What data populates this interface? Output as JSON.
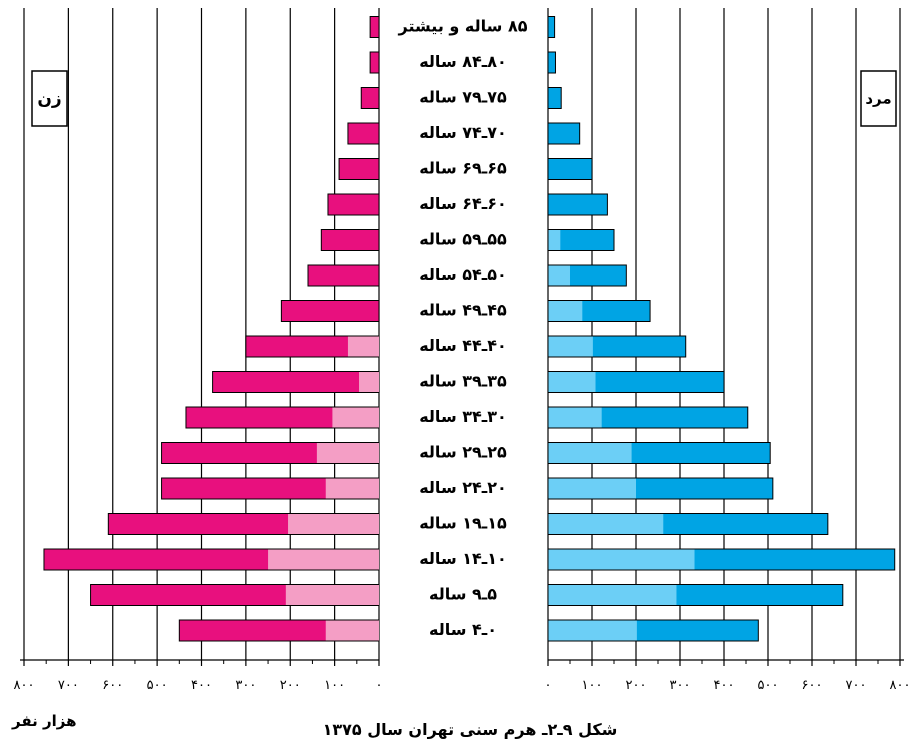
{
  "chart_data": {
    "type": "bar",
    "subtype": "population-pyramid",
    "title": "شکل ۹ـ۲ـ هرم سنی تهران سال ۱۳۷۵",
    "unit_label": "هزار نفر",
    "left_panel": {
      "label": "زن"
    },
    "right_panel": {
      "label": "مرد"
    },
    "xlim": [
      0,
      800
    ],
    "grid": true,
    "ticks": {
      "values": [
        0,
        100,
        200,
        300,
        400,
        500,
        600,
        700,
        800
      ],
      "labels": [
        "۰",
        "۱۰۰",
        "۲۰۰",
        "۳۰۰",
        "۴۰۰",
        "۵۰۰",
        "۶۰۰",
        "۷۰۰",
        "۸۰۰"
      ]
    },
    "categories": [
      "۸۵ ساله و بیشتر",
      "۸۰ـ۸۴ ساله",
      "۷۵ـ۷۹ ساله",
      "۷۰ـ۷۴ ساله",
      "۶۵ـ۶۹ ساله",
      "۶۰ـ۶۴ ساله",
      "۵۵ـ۵۹ ساله",
      "۵۰ـ۵۴ ساله",
      "۴۵ـ۴۹ ساله",
      "۴۰ـ۴۴ ساله",
      "۳۵ـ۳۹ ساله",
      "۳۰ـ۳۴ ساله",
      "۲۵ـ۲۹ ساله",
      "۲۰ـ۲۴ ساله",
      "۱۵ـ۱۹ ساله",
      "۱۰ـ۱۴ ساله",
      "۵ـ۹ ساله",
      "۰ـ۴ ساله"
    ],
    "series": [
      {
        "side": "female",
        "values": [
          20,
          20,
          40,
          70,
          90,
          115,
          130,
          160,
          220,
          300,
          375,
          435,
          490,
          490,
          610,
          755,
          650,
          450
        ],
        "color": "#E8107E"
      },
      {
        "side": "female-inner",
        "values": [
          0,
          0,
          0,
          0,
          0,
          0,
          0,
          0,
          0,
          70,
          45,
          105,
          140,
          120,
          205,
          250,
          210,
          120
        ],
        "color": "#F49EC5"
      },
      {
        "side": "male",
        "values": [
          15,
          17,
          30,
          72,
          100,
          135,
          150,
          178,
          232,
          313,
          400,
          454,
          505,
          511,
          636,
          788,
          670,
          478
        ],
        "color": "#00A4E4"
      },
      {
        "side": "male-inner",
        "values": [
          0,
          0,
          0,
          0,
          0,
          0,
          28,
          50,
          78,
          102,
          108,
          122,
          190,
          200,
          262,
          333,
          292,
          202
        ],
        "color": "#6CCFF6"
      }
    ]
  }
}
